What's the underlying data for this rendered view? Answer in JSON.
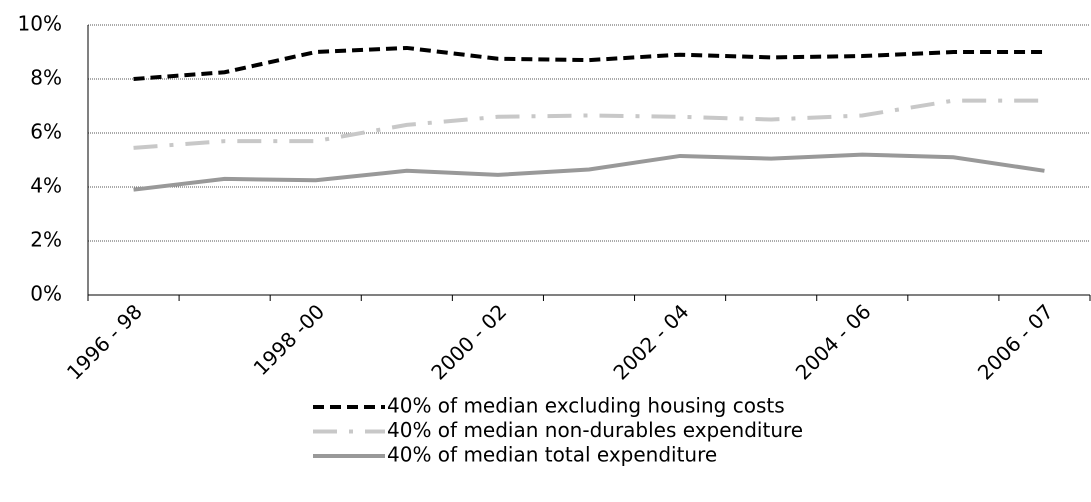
{
  "chart_data": {
    "type": "line",
    "categories": [
      "1996 - 98",
      null,
      "1998 -00",
      null,
      "2000 - 02",
      null,
      "2002 - 04",
      null,
      "2004 - 06",
      null,
      "2006 - 07"
    ],
    "series": [
      {
        "name": "40% of median excluding housing costs",
        "color": "#000000",
        "dash": "11,6",
        "values": [
          8.0,
          8.25,
          9.0,
          9.15,
          8.75,
          8.7,
          8.9,
          8.8,
          8.85,
          9.0,
          9.0
        ]
      },
      {
        "name": "40% of median non-durables expenditure",
        "color": "#c8c8c8",
        "dash": "24,12,4,12",
        "values": [
          5.45,
          5.7,
          5.7,
          6.3,
          6.6,
          6.65,
          6.6,
          6.5,
          6.65,
          7.2,
          7.2
        ]
      },
      {
        "name": "40% of median total expenditure",
        "color": "#999999",
        "dash": "none",
        "values": [
          3.9,
          4.3,
          4.25,
          4.6,
          4.45,
          4.65,
          5.15,
          5.05,
          5.2,
          5.1,
          4.6
        ]
      }
    ],
    "ylim": [
      0,
      10
    ],
    "yticks": [
      {
        "value": 0,
        "label": "0%"
      },
      {
        "value": 2,
        "label": "2%"
      },
      {
        "value": 4,
        "label": "4%"
      },
      {
        "value": 6,
        "label": "6%"
      },
      {
        "value": 8,
        "label": "8%"
      },
      {
        "value": 10,
        "label": "10%"
      }
    ],
    "grid": true
  }
}
